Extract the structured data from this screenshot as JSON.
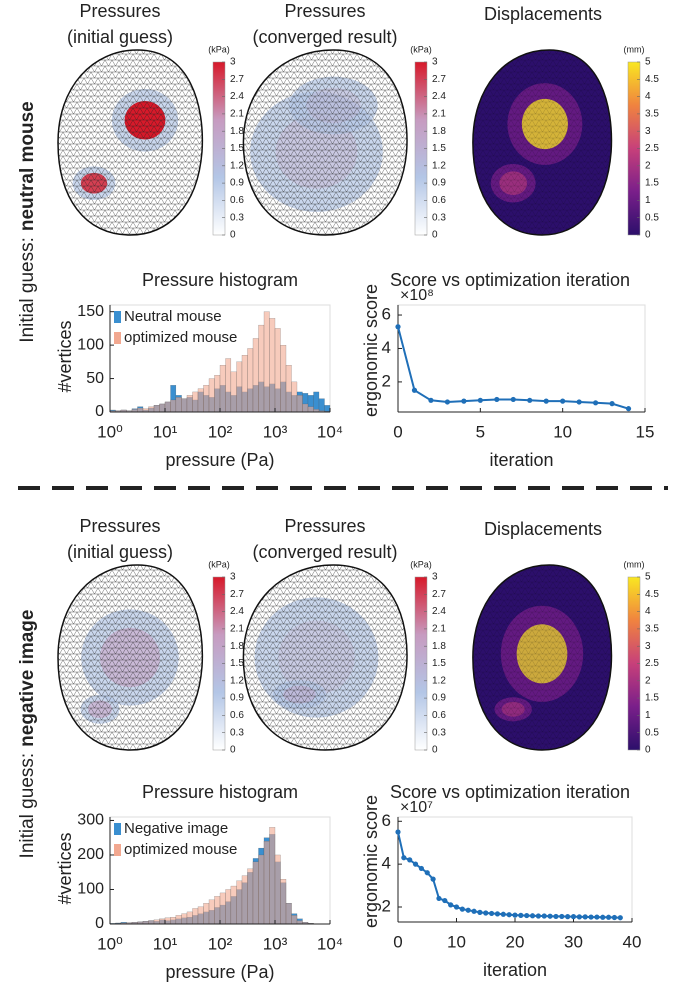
{
  "row_labels": [
    [
      "Initial guess:",
      "neutral mouse"
    ],
    [
      "Initial guess:",
      "negative image"
    ]
  ],
  "chart_data": [
    {
      "type": "surface",
      "title": [
        "Pressures",
        "(initial guess)"
      ],
      "colorbar_label": "(kPa)",
      "clim": [
        0,
        3
      ],
      "cticks": [
        0,
        0.3,
        0.6,
        0.9,
        1.2,
        1.5,
        1.8,
        2.1,
        2.4,
        2.7,
        3
      ],
      "colormap": [
        "#ffffff",
        "#b3c6e6",
        "#c79bc0",
        "#d7192a"
      ]
    },
    {
      "type": "surface",
      "title": [
        "Pressures",
        "(converged result)"
      ],
      "colorbar_label": "(kPa)",
      "clim": [
        0,
        3
      ],
      "cticks": [
        0,
        0.3,
        0.6,
        0.9,
        1.2,
        1.5,
        1.8,
        2.1,
        2.4,
        2.7,
        3
      ],
      "colormap": [
        "#ffffff",
        "#b3c6e6",
        "#c79bc0",
        "#d7192a"
      ]
    },
    {
      "type": "surface",
      "title": [
        "Displacements"
      ],
      "colorbar_label": "(mm)",
      "clim": [
        0,
        5
      ],
      "cticks": [
        0,
        0.5,
        1,
        1.5,
        2,
        2.5,
        3,
        3.5,
        4,
        4.5,
        5
      ],
      "colormap": [
        "#2c0f6b",
        "#7a1f8a",
        "#c7407a",
        "#f0833f",
        "#f9e721"
      ]
    },
    {
      "type": "histogram",
      "title": "Pressure histogram",
      "xlabel": "pressure (Pa)",
      "ylabel": "#vertices",
      "log_x": true,
      "legend": "upper left",
      "xlim": [
        1,
        10000
      ],
      "xticks": [
        {
          "value": 1,
          "label": "10⁰"
        },
        {
          "value": 10,
          "label": "10¹"
        },
        {
          "value": 100,
          "label": "10²"
        },
        {
          "value": 1000,
          "label": "10³"
        },
        {
          "value": 10000,
          "label": "10⁴"
        }
      ],
      "ylim": [
        0,
        160
      ],
      "yticks": [
        0,
        50,
        100,
        150
      ],
      "bins": [
        1,
        1.26,
        1.58,
        2,
        2.51,
        3.16,
        3.98,
        5.01,
        6.31,
        7.94,
        10,
        12.6,
        15.8,
        20,
        25.1,
        31.6,
        39.8,
        50.1,
        63.1,
        79.4,
        100,
        126,
        158,
        200,
        251,
        316,
        398,
        501,
        631,
        794,
        1000,
        1259,
        1585,
        1995,
        2512,
        3162,
        3981,
        5012,
        6310,
        7943,
        10000
      ],
      "series": [
        {
          "name": "Neutral mouse",
          "color": "#3a8fd0",
          "values": [
            3,
            2,
            3,
            2,
            5,
            8,
            3,
            6,
            10,
            12,
            15,
            40,
            25,
            20,
            22,
            18,
            30,
            25,
            22,
            35,
            40,
            30,
            25,
            38,
            30,
            35,
            40,
            45,
            38,
            42,
            35,
            45,
            30,
            25,
            30,
            28,
            25,
            30,
            20,
            10
          ]
        },
        {
          "name": "optimized mouse",
          "color": "#f2a890",
          "values": [
            2,
            2,
            3,
            2,
            4,
            6,
            5,
            8,
            10,
            12,
            15,
            18,
            22,
            20,
            25,
            30,
            35,
            40,
            50,
            55,
            70,
            80,
            60,
            75,
            85,
            95,
            110,
            130,
            150,
            140,
            125,
            100,
            70,
            45,
            25,
            12,
            8,
            4,
            2,
            1
          ]
        }
      ]
    },
    {
      "type": "line",
      "title": "Score vs optimization iteration",
      "xlabel": "iteration",
      "ylabel": "ergonomic score",
      "multiplier": "×10⁸",
      "color": "#1f6fb8",
      "xlim": [
        0,
        15
      ],
      "xticks": [
        0,
        5,
        10,
        15
      ],
      "ylim": [
        0.2,
        6.6
      ],
      "yticks": [
        2,
        4,
        6
      ],
      "x": [
        0,
        1,
        2,
        3,
        4,
        5,
        6,
        7,
        8,
        9,
        10,
        11,
        12,
        13,
        14
      ],
      "values": [
        5.3,
        1.5,
        0.9,
        0.8,
        0.85,
        0.9,
        0.95,
        0.95,
        0.9,
        0.85,
        0.85,
        0.8,
        0.75,
        0.7,
        0.4
      ]
    },
    {
      "type": "surface",
      "title": [
        "Pressures",
        "(initial guess)"
      ],
      "colorbar_label": "(kPa)",
      "clim": [
        0,
        3
      ],
      "cticks": [
        0,
        0.3,
        0.6,
        0.9,
        1.2,
        1.5,
        1.8,
        2.1,
        2.4,
        2.7,
        3
      ],
      "colormap": [
        "#ffffff",
        "#b3c6e6",
        "#c79bc0",
        "#d7192a"
      ]
    },
    {
      "type": "surface",
      "title": [
        "Pressures",
        "(converged result)"
      ],
      "colorbar_label": "(kPa)",
      "clim": [
        0,
        3
      ],
      "cticks": [
        0,
        0.3,
        0.6,
        0.9,
        1.2,
        1.5,
        1.8,
        2.1,
        2.4,
        2.7,
        3
      ],
      "colormap": [
        "#ffffff",
        "#b3c6e6",
        "#c79bc0",
        "#d7192a"
      ]
    },
    {
      "type": "surface",
      "title": [
        "Displacements"
      ],
      "colorbar_label": "(mm)",
      "clim": [
        0,
        5
      ],
      "cticks": [
        0,
        0.5,
        1,
        1.5,
        2,
        2.5,
        3,
        3.5,
        4,
        4.5,
        5
      ],
      "colormap": [
        "#2c0f6b",
        "#7a1f8a",
        "#c7407a",
        "#f0833f",
        "#f9e721"
      ]
    },
    {
      "type": "histogram",
      "title": "Pressure histogram",
      "xlabel": "pressure (Pa)",
      "ylabel": "#vertices",
      "log_x": true,
      "legend": "upper left",
      "xlim": [
        1,
        10000
      ],
      "xticks": [
        {
          "value": 1,
          "label": "10⁰"
        },
        {
          "value": 10,
          "label": "10¹"
        },
        {
          "value": 100,
          "label": "10²"
        },
        {
          "value": 1000,
          "label": "10³"
        },
        {
          "value": 10000,
          "label": "10⁴"
        }
      ],
      "ylim": [
        0,
        310
      ],
      "yticks": [
        0,
        100,
        200,
        300
      ],
      "bins": [
        1,
        1.26,
        1.58,
        2,
        2.51,
        3.16,
        3.98,
        5.01,
        6.31,
        7.94,
        10,
        12.6,
        15.8,
        20,
        25.1,
        31.6,
        39.8,
        50.1,
        63.1,
        79.4,
        100,
        126,
        158,
        200,
        251,
        316,
        398,
        501,
        631,
        794,
        1000,
        1259,
        1585,
        1995,
        2512,
        3162,
        3981,
        5012,
        6310,
        7943,
        10000
      ],
      "series": [
        {
          "name": "Negative image",
          "color": "#3a8fd0",
          "values": [
            2,
            3,
            5,
            4,
            5,
            6,
            8,
            10,
            8,
            12,
            10,
            12,
            15,
            18,
            20,
            25,
            30,
            35,
            40,
            48,
            55,
            65,
            80,
            100,
            120,
            150,
            190,
            220,
            250,
            260,
            180,
            120,
            60,
            30,
            15,
            5,
            2,
            1,
            0,
            0
          ]
        },
        {
          "name": "optimized mouse",
          "color": "#f2a890",
          "values": [
            1,
            2,
            3,
            4,
            5,
            6,
            8,
            10,
            12,
            15,
            18,
            20,
            25,
            30,
            35,
            45,
            50,
            60,
            70,
            80,
            90,
            100,
            110,
            125,
            140,
            160,
            180,
            200,
            240,
            280,
            200,
            130,
            60,
            25,
            10,
            5,
            2,
            0,
            0,
            0
          ]
        }
      ]
    },
    {
      "type": "line",
      "title": "Score vs optimization iteration",
      "xlabel": "iteration",
      "ylabel": "ergonomic score",
      "multiplier": "×10⁷",
      "color": "#1f6fb8",
      "xlim": [
        0,
        40
      ],
      "xticks": [
        0,
        10,
        20,
        30,
        40
      ],
      "ylim": [
        1.3,
        6.2
      ],
      "yticks": [
        2,
        4,
        6
      ],
      "x": [
        0,
        1,
        2,
        3,
        4,
        5,
        6,
        7,
        8,
        9,
        10,
        11,
        12,
        13,
        14,
        15,
        16,
        17,
        18,
        19,
        20,
        21,
        22,
        23,
        24,
        25,
        26,
        27,
        28,
        29,
        30,
        31,
        32,
        33,
        34,
        35,
        36,
        37,
        38
      ],
      "values": [
        5.5,
        4.3,
        4.2,
        4.0,
        3.8,
        3.6,
        3.3,
        2.4,
        2.3,
        2.1,
        2.0,
        1.9,
        1.85,
        1.8,
        1.75,
        1.72,
        1.7,
        1.68,
        1.66,
        1.64,
        1.62,
        1.61,
        1.6,
        1.59,
        1.58,
        1.58,
        1.57,
        1.56,
        1.56,
        1.55,
        1.55,
        1.54,
        1.54,
        1.53,
        1.53,
        1.52,
        1.52,
        1.51,
        1.5
      ]
    }
  ]
}
